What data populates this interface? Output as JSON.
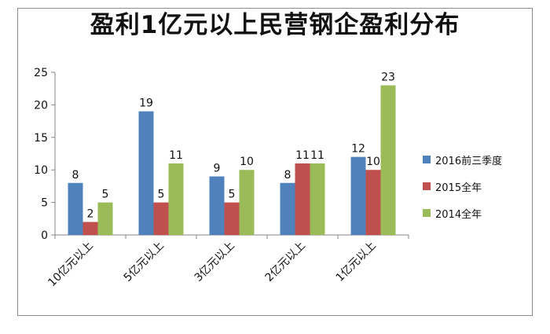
{
  "chart_data": {
    "type": "bar",
    "title": "盈利1亿元以上民营钢企盈利分布",
    "categories": [
      "10亿元以上",
      "5亿元以上",
      "3亿元以上",
      "2亿元以上",
      "1亿元以上"
    ],
    "series": [
      {
        "name": "2016前三季度",
        "color": "#4f81bd",
        "values": [
          8,
          19,
          9,
          8,
          12
        ]
      },
      {
        "name": "2015全年",
        "color": "#c0504d",
        "values": [
          2,
          5,
          5,
          11,
          10
        ]
      },
      {
        "name": "2014全年",
        "color": "#9bbb59",
        "values": [
          5,
          11,
          10,
          11,
          23
        ]
      }
    ],
    "ylim": [
      0,
      25
    ],
    "yticks": [
      0,
      5,
      10,
      15,
      20,
      25
    ],
    "grid": false,
    "legend_position": "right",
    "data_labels": true
  }
}
